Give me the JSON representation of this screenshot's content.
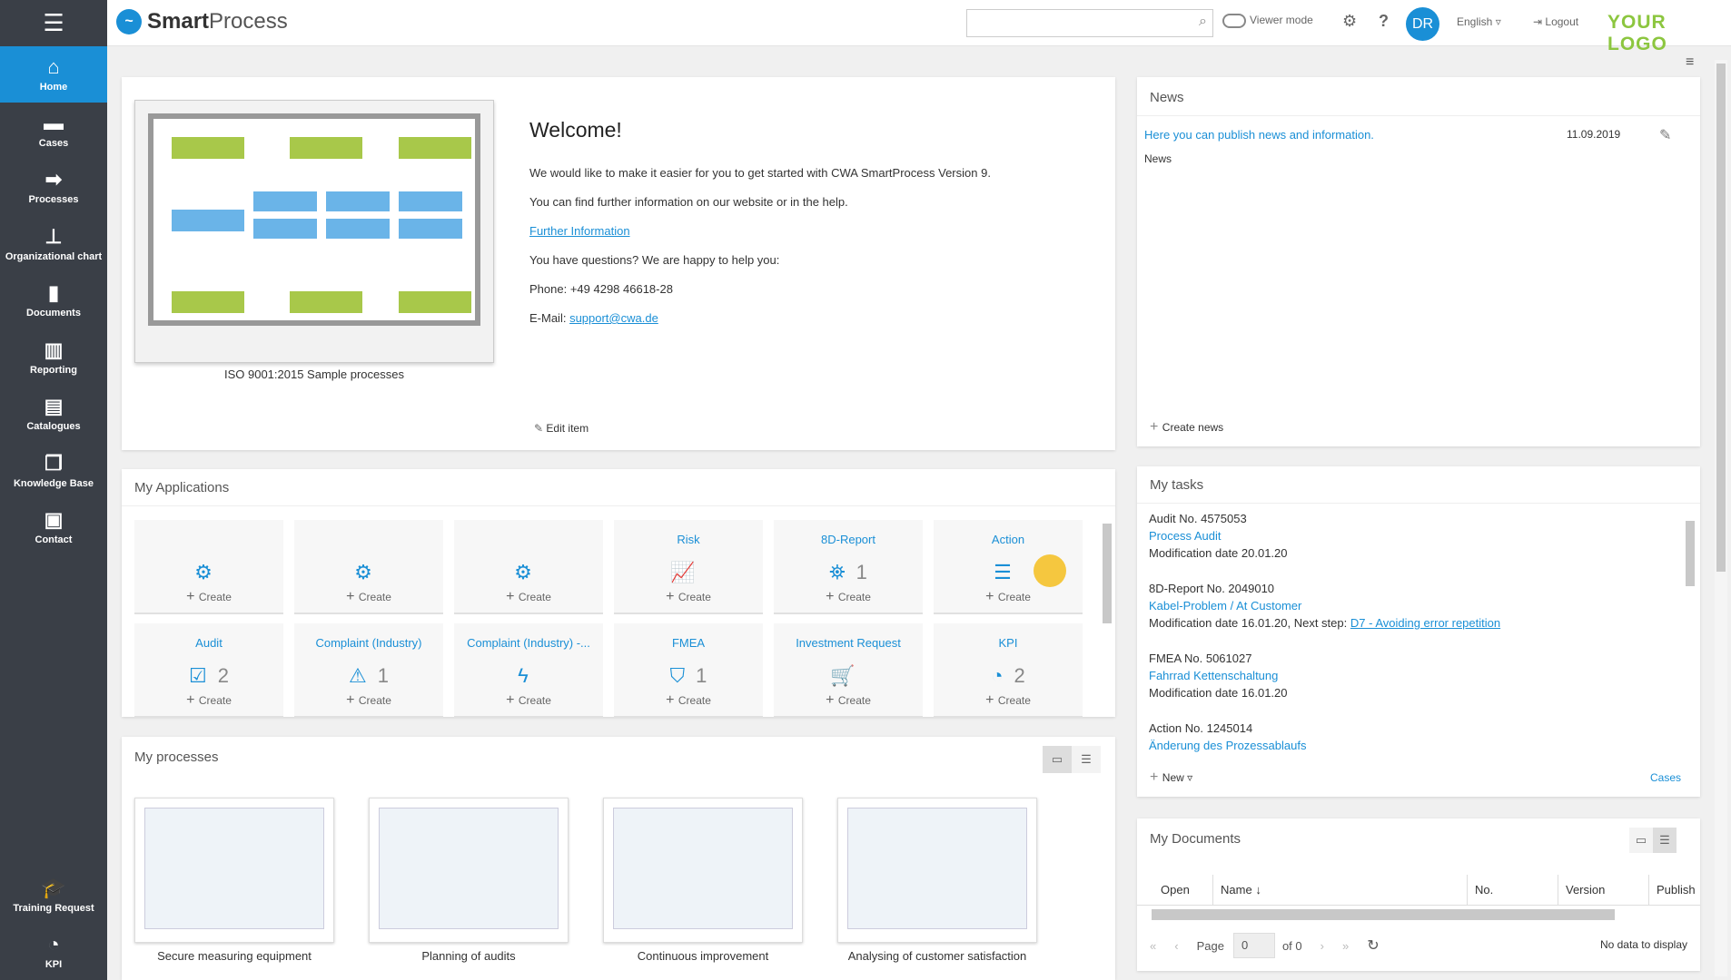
{
  "sidebar": {
    "items": [
      {
        "label": "Home",
        "icon": "home-icon"
      },
      {
        "label": "Cases",
        "icon": "folder-icon"
      },
      {
        "label": "Processes",
        "icon": "process-icon"
      },
      {
        "label": "Organizational chart",
        "icon": "org-chart-icon"
      },
      {
        "label": "Documents",
        "icon": "document-icon"
      },
      {
        "label": "Reporting",
        "icon": "bar-chart-icon"
      },
      {
        "label": "Catalogues",
        "icon": "book-icon"
      },
      {
        "label": "Knowledge Base",
        "icon": "copy-icon"
      },
      {
        "label": "Contact",
        "icon": "contact-icon"
      }
    ],
    "bottom": [
      {
        "label": "Training Request",
        "icon": "graduation-cap-icon"
      },
      {
        "label": "KPI",
        "icon": "gauge-icon"
      }
    ]
  },
  "header": {
    "app_name_bold": "Smart",
    "app_name_rest": "Process",
    "search_placeholder": "",
    "viewer_mode": "Viewer mode",
    "avatar": "DR",
    "language": "English",
    "logout": "Logout",
    "your_logo": "YOUR LOGO"
  },
  "welcome": {
    "title": "Welcome!",
    "line1": "We would like to make it easier for you to get started with CWA SmartProcess Version 9.",
    "line2": "You can find further information on our website or in the help.",
    "further": "Further Information",
    "questions": "You have questions? We are happy to help you:",
    "phone": "Phone: +49 4298 46618-28",
    "email_label": "E-Mail: ",
    "email": "support@cwa.de",
    "caption": "ISO 9001:2015 Sample processes",
    "edit": "Edit item"
  },
  "news": {
    "title": "News",
    "item_title": "Here you can publish news and information.",
    "item_date": "11.09.2019",
    "item_category": "News",
    "create": "Create news"
  },
  "apps": {
    "title": "My Applications",
    "create": "Create",
    "tiles": [
      {
        "title": "",
        "icon": "gears-icon",
        "count": ""
      },
      {
        "title": "",
        "icon": "gears-icon",
        "count": ""
      },
      {
        "title": "",
        "icon": "gears-icon",
        "count": ""
      },
      {
        "title": "Risk",
        "icon": "chart-line-icon",
        "count": ""
      },
      {
        "title": "8D-Report",
        "icon": "binoculars-icon",
        "count": "1"
      },
      {
        "title": "Action",
        "icon": "checklist-icon",
        "count": ""
      },
      {
        "title": "Audit",
        "icon": "checkbox-icon",
        "count": "2"
      },
      {
        "title": "Complaint (Industry)",
        "icon": "exclamation-icon",
        "count": "1"
      },
      {
        "title": "Complaint (Industry) -...",
        "icon": "bolt-icon",
        "count": ""
      },
      {
        "title": "FMEA",
        "icon": "shield-icon",
        "count": "1"
      },
      {
        "title": "Investment Request",
        "icon": "cart-icon",
        "count": ""
      },
      {
        "title": "KPI",
        "icon": "gauge-icon",
        "count": "2"
      }
    ]
  },
  "processes": {
    "title": "My processes",
    "items": [
      "Secure measuring equipment",
      "Planning of audits",
      "Continuous improvement",
      "Analysing of customer satisfaction"
    ]
  },
  "tasks": {
    "title": "My tasks",
    "items": [
      {
        "head": "Audit No. 4575053",
        "link": "Process Audit",
        "meta": "Modification date 20.01.20",
        "step": ""
      },
      {
        "head": "8D-Report No. 2049010",
        "link": "Kabel-Problem / At Customer",
        "meta": "Modification date 16.01.20, Next step: ",
        "step": "D7 - Avoiding error repetition"
      },
      {
        "head": "FMEA No. 5061027",
        "link": "Fahrrad Kettenschaltung",
        "meta": "Modification date 16.01.20",
        "step": ""
      },
      {
        "head": "Action No. 1245014",
        "link": "Änderung des Prozessablaufs",
        "meta": "",
        "step": ""
      }
    ],
    "new": "New",
    "cases": "Cases"
  },
  "documents": {
    "title": "My Documents",
    "columns": [
      "Open",
      "Name",
      "No.",
      "Version",
      "Publish"
    ],
    "page_label": "Page",
    "page_value": "0",
    "of": "of 0",
    "empty": "No data to display"
  }
}
